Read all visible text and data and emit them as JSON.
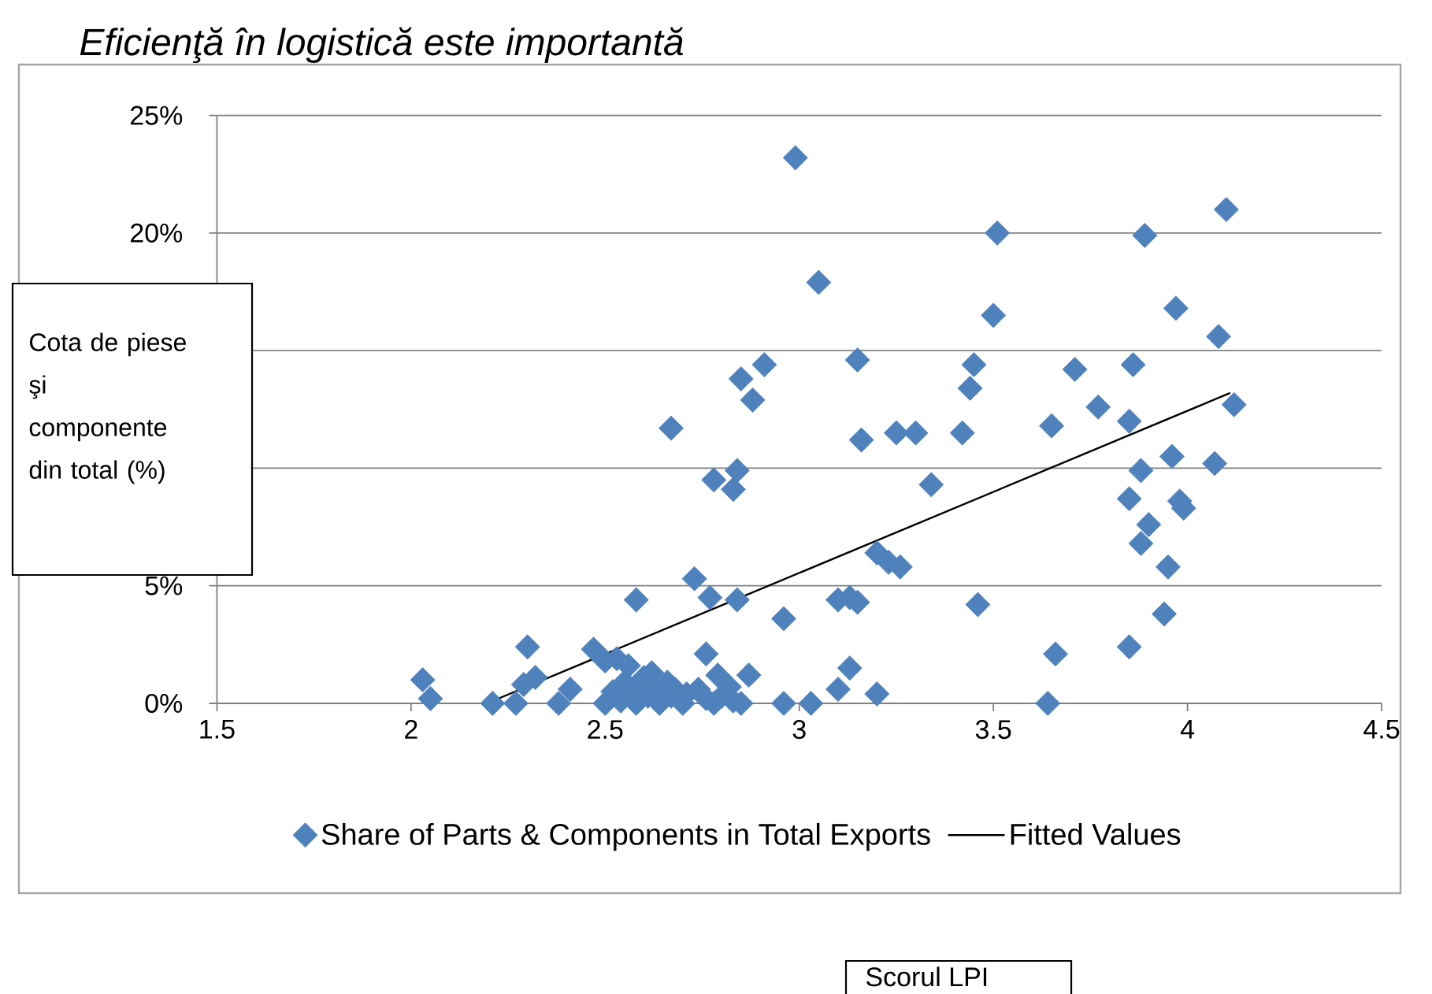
{
  "chart_data": {
    "type": "scatter",
    "title": "Eficienţă în logistică este importantă",
    "ylabel": "Cota de piese şi componente din total (%)",
    "annotations": [
      "Scorul LPI"
    ],
    "xlim": [
      1.5,
      4.5
    ],
    "ylim": [
      0,
      25
    ],
    "xticks": [
      1.5,
      2,
      2.5,
      3,
      3.5,
      4,
      4.5
    ],
    "yticks": [
      {
        "value": 0,
        "label": "0%"
      },
      {
        "value": 5,
        "label": "5%"
      },
      {
        "value": 10,
        "label": null
      },
      {
        "value": 15,
        "label": null
      },
      {
        "value": 20,
        "label": "20%"
      },
      {
        "value": 25,
        "label": "25%"
      }
    ],
    "grid": "y",
    "legend": "bottom",
    "marker": "diamond",
    "series": [
      {
        "name": "Share of Parts & Components in Total Exports",
        "color": "#4f81bd",
        "x": [
          2.99,
          3.05,
          3.15,
          2.91,
          2.85,
          2.88,
          2.67,
          3.16,
          3.25,
          3.3,
          3.42,
          2.78,
          2.84,
          2.83,
          3.34,
          3.2,
          3.23,
          3.26,
          2.73,
          2.77,
          2.84,
          2.58,
          2.96,
          3.1,
          3.13,
          3.15,
          2.47,
          2.5,
          2.53,
          2.76,
          2.79,
          2.87,
          3.13,
          3.1,
          3.2,
          2.96,
          3.03,
          2.03,
          2.05,
          2.3,
          2.21,
          2.27,
          2.29,
          2.32,
          2.38,
          2.41,
          3.65,
          3.85,
          3.96,
          4.07,
          3.88,
          3.85,
          3.98,
          3.99,
          3.9,
          3.88,
          3.95,
          3.46,
          3.94,
          3.85,
          3.66,
          3.64,
          3.51,
          3.89,
          4.1,
          3.5,
          3.97,
          4.08,
          3.45,
          3.44,
          3.71,
          3.86,
          3.77,
          4.12,
          2.5,
          2.52,
          2.54,
          2.55,
          2.57,
          2.58,
          2.59,
          2.6,
          2.61,
          2.62,
          2.63,
          2.64,
          2.66,
          2.67,
          2.68,
          2.7,
          2.71,
          2.74,
          2.76,
          2.78,
          2.8,
          2.82,
          2.83,
          2.85,
          2.56
        ],
        "values": [
          23.2,
          17.9,
          14.6,
          14.4,
          13.8,
          12.9,
          11.7,
          11.2,
          11.5,
          11.5,
          11.5,
          9.5,
          9.9,
          9.1,
          9.3,
          6.4,
          6.0,
          5.8,
          5.3,
          4.5,
          4.4,
          4.4,
          3.6,
          4.4,
          4.5,
          4.3,
          2.3,
          1.8,
          1.9,
          2.1,
          1.2,
          1.2,
          1.5,
          0.6,
          0.4,
          0.0,
          0.0,
          1.0,
          0.2,
          2.4,
          0.0,
          0.0,
          0.8,
          1.1,
          0.0,
          0.6,
          11.8,
          12.0,
          10.5,
          10.2,
          9.9,
          8.7,
          8.6,
          8.3,
          7.6,
          6.8,
          5.8,
          4.2,
          3.8,
          2.4,
          2.1,
          0.0,
          20.0,
          19.9,
          21.0,
          16.5,
          16.8,
          15.6,
          14.4,
          13.4,
          14.2,
          14.4,
          12.6,
          12.7,
          0.0,
          0.5,
          0.1,
          0.9,
          0.3,
          0.0,
          0.7,
          1.1,
          0.3,
          1.3,
          0.6,
          0.0,
          0.9,
          0.3,
          0.6,
          0.0,
          0.4,
          0.6,
          0.2,
          0.0,
          0.3,
          0.7,
          0.1,
          0.0,
          1.6
        ]
      },
      {
        "name": "Fitted Values",
        "type": "line",
        "color": "#000000",
        "marker": "none",
        "line_style": "solid",
        "x": [
          2.21,
          4.11
        ],
        "values": [
          0.1,
          13.2
        ]
      }
    ]
  }
}
